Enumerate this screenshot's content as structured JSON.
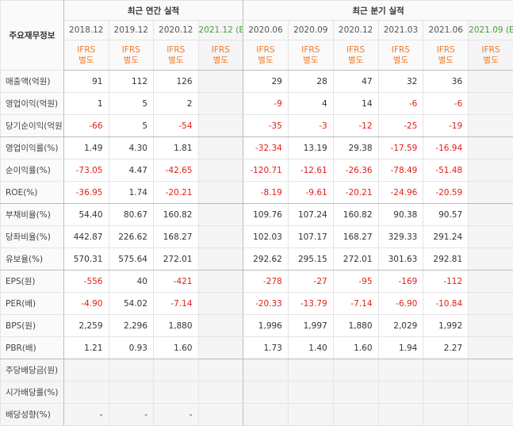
{
  "header": {
    "title": "주요재무정보",
    "groups": [
      "최근 연간 실적",
      "최근 분기 실적"
    ]
  },
  "columns": [
    {
      "period": "2018.12",
      "basis": "IFRS",
      "type": "별도"
    },
    {
      "period": "2019.12",
      "basis": "IFRS",
      "type": "별도"
    },
    {
      "period": "2020.12",
      "basis": "IFRS",
      "type": "별도"
    },
    {
      "period": "2021.12",
      "estimate": "(E)",
      "basis": "IFRS",
      "type": "별도"
    },
    {
      "period": "2020.06",
      "basis": "IFRS",
      "type": "별도"
    },
    {
      "period": "2020.09",
      "basis": "IFRS",
      "type": "별도"
    },
    {
      "period": "2020.12",
      "basis": "IFRS",
      "type": "별도"
    },
    {
      "period": "2021.03",
      "basis": "IFRS",
      "type": "별도"
    },
    {
      "period": "2021.06",
      "basis": "IFRS",
      "type": "별도"
    },
    {
      "period": "2021.09",
      "estimate": "(E)",
      "basis": "IFRS",
      "type": "별도"
    }
  ],
  "rows": [
    {
      "label": "매출액(억원)",
      "values": [
        "91",
        "112",
        "126",
        null,
        "29",
        "28",
        "47",
        "32",
        "36",
        null
      ]
    },
    {
      "label": "영업이익(억원)",
      "values": [
        "1",
        "5",
        "2",
        null,
        "-9",
        "4",
        "14",
        "-6",
        "-6",
        null
      ]
    },
    {
      "label": "당기순이익(억원)",
      "values": [
        "-66",
        "5",
        "-54",
        null,
        "-35",
        "-3",
        "-12",
        "-25",
        "-19",
        null
      ]
    },
    {
      "label": "영업이익률(%)",
      "values": [
        "1.49",
        "4.30",
        "1.81",
        null,
        "-32.34",
        "13.19",
        "29.38",
        "-17.59",
        "-16.94",
        null
      ]
    },
    {
      "label": "순이익률(%)",
      "values": [
        "-73.05",
        "4.47",
        "-42.65",
        null,
        "-120.71",
        "-12.61",
        "-26.36",
        "-78.49",
        "-51.48",
        null
      ]
    },
    {
      "label": "ROE(%)",
      "values": [
        "-36.95",
        "1.74",
        "-20.21",
        null,
        "-8.19",
        "-9.61",
        "-20.21",
        "-24.96",
        "-20.59",
        null
      ]
    },
    {
      "label": "부채비율(%)",
      "values": [
        "54.40",
        "80.67",
        "160.82",
        null,
        "109.76",
        "107.24",
        "160.82",
        "90.38",
        "90.57",
        null
      ]
    },
    {
      "label": "당좌비율(%)",
      "values": [
        "442.87",
        "226.62",
        "168.27",
        null,
        "102.03",
        "107.17",
        "168.27",
        "329.33",
        "291.24",
        null
      ]
    },
    {
      "label": "유보율(%)",
      "values": [
        "570.31",
        "575.64",
        "272.01",
        null,
        "292.62",
        "295.15",
        "272.01",
        "301.63",
        "292.81",
        null
      ]
    },
    {
      "label": "EPS(원)",
      "values": [
        "-556",
        "40",
        "-421",
        null,
        "-278",
        "-27",
        "-95",
        "-169",
        "-112",
        null
      ]
    },
    {
      "label": "PER(배)",
      "values": [
        "-4.90",
        "54.02",
        "-7.14",
        null,
        "-20.33",
        "-13.79",
        "-7.14",
        "-6.90",
        "-10.84",
        null
      ]
    },
    {
      "label": "BPS(원)",
      "values": [
        "2,259",
        "2,296",
        "1,880",
        null,
        "1,996",
        "1,997",
        "1,880",
        "2,029",
        "1,992",
        null
      ]
    },
    {
      "label": "PBR(배)",
      "values": [
        "1.21",
        "0.93",
        "1.60",
        null,
        "1.73",
        "1.40",
        "1.60",
        "1.94",
        "2.27",
        null
      ]
    },
    {
      "label": "주당배당금(원)",
      "values": [
        null,
        null,
        null,
        null,
        null,
        null,
        null,
        null,
        null,
        null
      ]
    },
    {
      "label": "시가배당률(%)",
      "values": [
        null,
        null,
        null,
        null,
        null,
        null,
        null,
        null,
        null,
        null
      ]
    },
    {
      "label": "배당성향(%)",
      "values": [
        "-",
        "-",
        "-",
        null,
        null,
        null,
        null,
        null,
        null,
        null
      ]
    }
  ]
}
